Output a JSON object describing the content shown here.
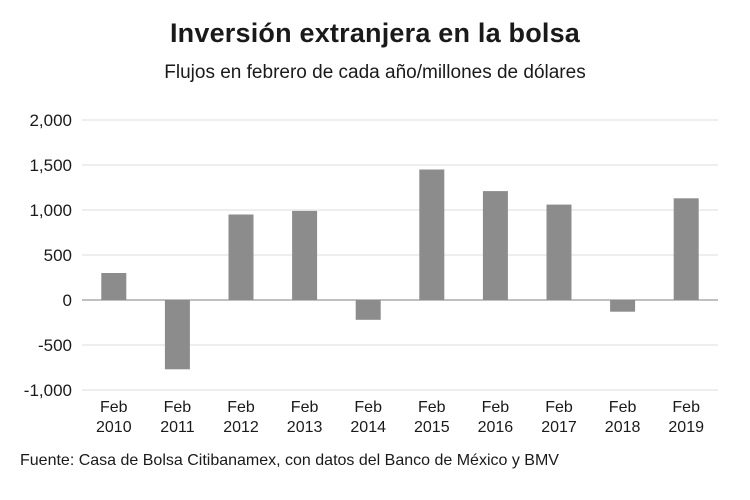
{
  "chart_data": {
    "type": "bar",
    "title": "Inversión extranjera en la bolsa",
    "subtitle": "Flujos en febrero de cada año/millones de dólares",
    "categories": [
      [
        "Feb",
        "2010"
      ],
      [
        "Feb",
        "2011"
      ],
      [
        "Feb",
        "2012"
      ],
      [
        "Feb",
        "2013"
      ],
      [
        "Feb",
        "2014"
      ],
      [
        "Feb",
        "2015"
      ],
      [
        "Feb",
        "2016"
      ],
      [
        "Feb",
        "2017"
      ],
      [
        "Feb",
        "2018"
      ],
      [
        "Feb",
        "2019"
      ]
    ],
    "values": [
      300,
      -770,
      950,
      990,
      -220,
      1450,
      1210,
      1060,
      -130,
      1130
    ],
    "ylim": [
      -1000,
      2000
    ],
    "yticks": [
      2000,
      1500,
      1000,
      500,
      0,
      -500,
      -1000
    ],
    "ytick_labels": [
      "2,000",
      "1,500",
      "1,000",
      "500",
      "0",
      "-500",
      "-1,000"
    ],
    "bar_color": "#8c8c8c",
    "grid": true
  },
  "footer": "Fuente: Casa de Bolsa Citibanamex, con datos del Banco de México y BMV"
}
